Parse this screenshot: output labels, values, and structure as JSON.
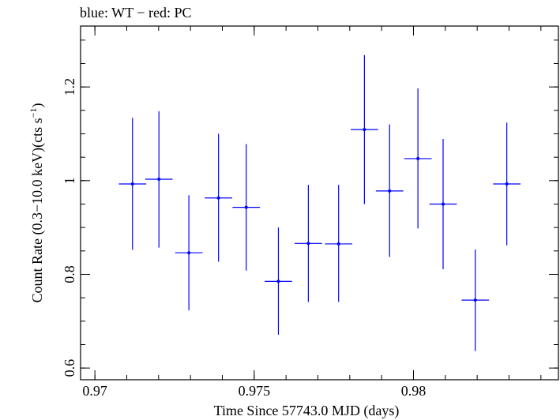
{
  "chart_data": {
    "type": "scatter",
    "title": "blue: WT − red: PC",
    "xlabel": "Time Since 57743.0 MJD (days)",
    "ylabel_main": "Count Rate (0.3−10.0 keV)(cts s",
    "ylabel_sup": "−1",
    "ylabel_close": ")",
    "xlim": [
      0.96955,
      0.98455
    ],
    "ylim": [
      0.575,
      1.33
    ],
    "x_ticks": [
      {
        "value": 0.97,
        "label": "0.97"
      },
      {
        "value": 0.975,
        "label": "0.975"
      },
      {
        "value": 0.98,
        "label": "0.98"
      }
    ],
    "x_minor_step": 0.001,
    "y_ticks": [
      {
        "value": 0.6,
        "label": "0.6"
      },
      {
        "value": 0.8,
        "label": "0.8"
      },
      {
        "value": 1.0,
        "label": "1"
      },
      {
        "value": 1.2,
        "label": "1.2"
      }
    ],
    "y_minor_step": 0.05,
    "series": [
      {
        "name": "WT",
        "color": "#0000ff",
        "points": [
          {
            "x": 0.97118,
            "xerr": 0.00043,
            "y": 0.993,
            "ylo": 0.852,
            "yhi": 1.134
          },
          {
            "x": 0.97201,
            "xerr": 0.00043,
            "y": 1.003,
            "ylo": 0.857,
            "yhi": 1.148
          },
          {
            "x": 0.97295,
            "xerr": 0.00043,
            "y": 0.846,
            "ylo": 0.723,
            "yhi": 0.969
          },
          {
            "x": 0.97388,
            "xerr": 0.00043,
            "y": 0.963,
            "ylo": 0.827,
            "yhi": 1.1
          },
          {
            "x": 0.97475,
            "xerr": 0.00043,
            "y": 0.943,
            "ylo": 0.808,
            "yhi": 1.078
          },
          {
            "x": 0.97576,
            "xerr": 0.00043,
            "y": 0.785,
            "ylo": 0.671,
            "yhi": 0.9
          },
          {
            "x": 0.9767,
            "xerr": 0.00043,
            "y": 0.866,
            "ylo": 0.741,
            "yhi": 0.991
          },
          {
            "x": 0.97765,
            "xerr": 0.00043,
            "y": 0.865,
            "ylo": 0.741,
            "yhi": 0.991
          },
          {
            "x": 0.97846,
            "xerr": 0.00043,
            "y": 1.109,
            "ylo": 0.95,
            "yhi": 1.268
          },
          {
            "x": 0.97925,
            "xerr": 0.00043,
            "y": 0.978,
            "ylo": 0.837,
            "yhi": 1.12
          },
          {
            "x": 0.98014,
            "xerr": 0.00043,
            "y": 1.047,
            "ylo": 0.898,
            "yhi": 1.197
          },
          {
            "x": 0.98093,
            "xerr": 0.00043,
            "y": 0.95,
            "ylo": 0.811,
            "yhi": 1.089
          },
          {
            "x": 0.98194,
            "xerr": 0.00043,
            "y": 0.745,
            "ylo": 0.636,
            "yhi": 0.853
          },
          {
            "x": 0.98293,
            "xerr": 0.00043,
            "y": 0.993,
            "ylo": 0.862,
            "yhi": 1.124
          }
        ]
      }
    ]
  }
}
